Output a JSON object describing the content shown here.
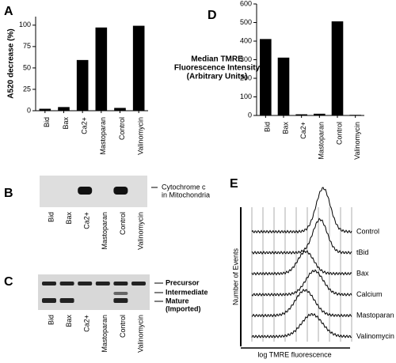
{
  "chart_data": [
    {
      "type": "bar",
      "letter": "A",
      "ylabel": "A520 decrease (%)",
      "categories": [
        "Bid",
        "Bax",
        "Ca2+",
        "Mastoparan",
        "Control",
        "Valinomycin"
      ],
      "values": [
        2,
        4,
        59,
        97,
        3,
        99
      ],
      "color": "#000000",
      "ylim": [
        0,
        110
      ],
      "yticks": [
        0,
        25,
        50,
        75,
        100
      ]
    },
    {
      "type": "bar",
      "letter": "D",
      "ylabel": [
        "Median TMRE",
        "Fluorescence Intensity",
        "(Arbitrary Units)"
      ],
      "categories": [
        "Bid",
        "Bax",
        "Ca2+",
        "Mastoparan",
        "Control",
        "Valinomycin"
      ],
      "values": [
        410,
        310,
        5,
        8,
        505,
        2
      ],
      "color": "#000000",
      "ylim": [
        0,
        600
      ],
      "yticks": [
        0,
        100,
        200,
        300,
        400,
        500,
        600
      ]
    }
  ],
  "gel_b": {
    "letter": "B",
    "lanes": [
      "Bid",
      "Bax",
      "Ca2+",
      "Mastoparan",
      "Control",
      "Valinomycin"
    ],
    "label": [
      "Cytochrome c",
      "in Mitochondria"
    ]
  },
  "gel_c": {
    "letter": "C",
    "lanes": [
      "Bid",
      "Bax",
      "Ca2+",
      "Mastoparan",
      "Control",
      "Valinomycin"
    ],
    "labels": [
      "Precursor",
      "Intermediate",
      "Mature",
      "(Imported)"
    ]
  },
  "histogram_e": {
    "letter": "E",
    "ylabel": "Number of Events",
    "xlabel": "log TMRE fluorescence",
    "traces": [
      "Control",
      "tBid",
      "Bax",
      "Calcium",
      "Mastoparan",
      "Valinomycin"
    ]
  }
}
